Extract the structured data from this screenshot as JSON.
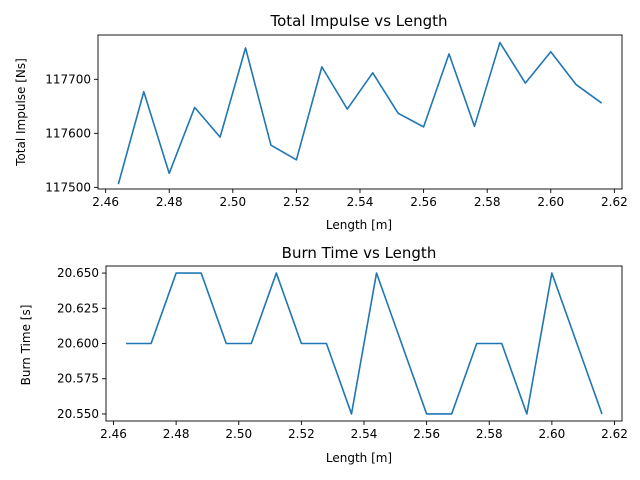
{
  "chart_data": [
    {
      "type": "line",
      "title": "Total Impulse vs Length",
      "xlabel": "Length [m]",
      "ylabel": "Total Impulse [Ns]",
      "xlim": [
        2.4576,
        2.6224
      ],
      "ylim": [
        117497,
        117782
      ],
      "xticks": [
        2.46,
        2.48,
        2.5,
        2.52,
        2.54,
        2.56,
        2.58,
        2.6,
        2.62
      ],
      "xtick_labels": [
        "2.46",
        "2.48",
        "2.50",
        "2.52",
        "2.54",
        "2.56",
        "2.58",
        "2.60",
        "2.62"
      ],
      "yticks": [
        117500,
        117600,
        117700
      ],
      "ytick_labels": [
        "117500",
        "117600",
        "117700"
      ],
      "grid": false,
      "series": [
        {
          "color": "#1f77b4",
          "x": [
            2.464,
            2.472,
            2.48,
            2.488,
            2.496,
            2.504,
            2.512,
            2.52,
            2.528,
            2.536,
            2.544,
            2.552,
            2.56,
            2.568,
            2.576,
            2.584,
            2.592,
            2.6,
            2.608,
            2.616
          ],
          "y": [
            117506,
            117677,
            117526,
            117648,
            117593,
            117758,
            117578,
            117551,
            117723,
            117645,
            117712,
            117637,
            117612,
            117747,
            117613,
            117768,
            117693,
            117751,
            117690,
            117656
          ]
        }
      ]
    },
    {
      "type": "line",
      "title": "Burn Time vs Length",
      "xlabel": "Length [m]",
      "ylabel": "Burn Time [s]",
      "xlim": [
        2.4576,
        2.6224
      ],
      "ylim": [
        20.545,
        20.655
      ],
      "xticks": [
        2.46,
        2.48,
        2.5,
        2.52,
        2.54,
        2.56,
        2.58,
        2.6,
        2.62
      ],
      "xtick_labels": [
        "2.46",
        "2.48",
        "2.50",
        "2.52",
        "2.54",
        "2.56",
        "2.58",
        "2.60",
        "2.62"
      ],
      "yticks": [
        20.55,
        20.575,
        20.6,
        20.625,
        20.65
      ],
      "ytick_labels": [
        "20.550",
        "20.575",
        "20.600",
        "20.625",
        "20.650"
      ],
      "grid": false,
      "series": [
        {
          "color": "#1f77b4",
          "x": [
            2.464,
            2.472,
            2.48,
            2.488,
            2.496,
            2.504,
            2.512,
            2.52,
            2.528,
            2.536,
            2.544,
            2.552,
            2.56,
            2.568,
            2.576,
            2.584,
            2.592,
            2.6,
            2.608,
            2.616
          ],
          "y": [
            20.6,
            20.6,
            20.65,
            20.65,
            20.6,
            20.6,
            20.65,
            20.6,
            20.6,
            20.55,
            20.65,
            20.6,
            20.55,
            20.55,
            20.6,
            20.6,
            20.55,
            20.65,
            20.6,
            20.55
          ]
        }
      ]
    }
  ]
}
